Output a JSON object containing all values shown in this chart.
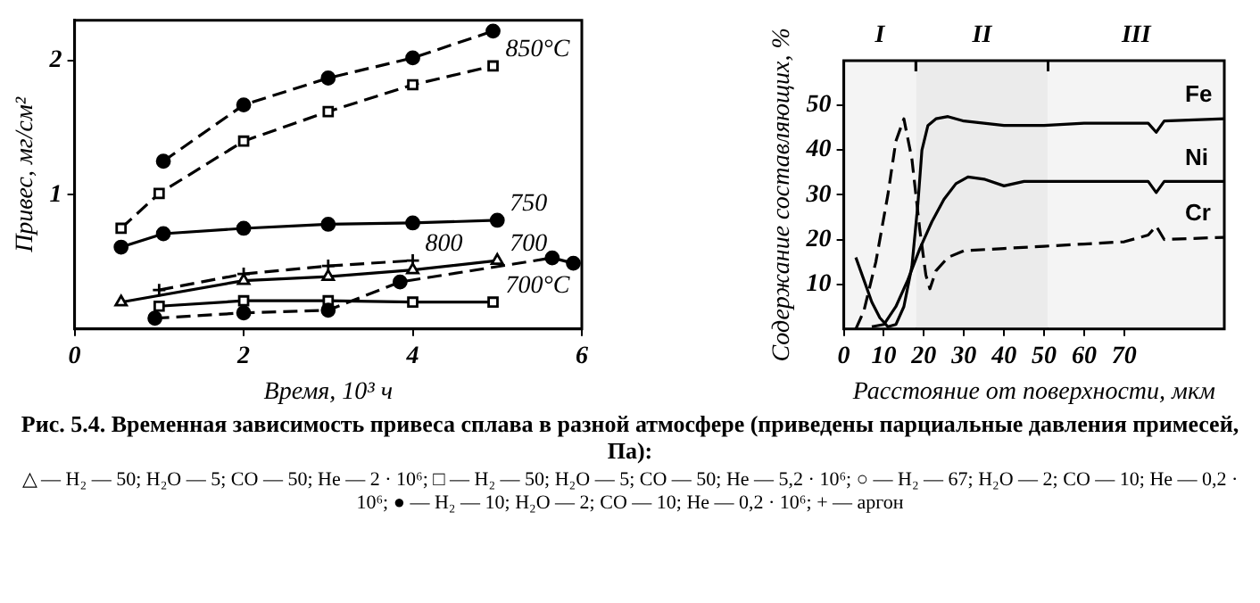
{
  "chart_data": [
    {
      "type": "line",
      "xlabel": "Время, 10³ ч",
      "ylabel": "Привес, мг/см²",
      "xlim": [
        0,
        6
      ],
      "xticks": [
        0,
        2,
        4,
        6
      ],
      "ylim": [
        0,
        2.3
      ],
      "yticks": [
        1,
        2
      ],
      "grid": false,
      "legend": false,
      "series": [
        {
          "color": "#000000",
          "marker": "circle",
          "line_style": "dashed",
          "x": [
            1.05,
            2,
            3,
            4,
            4.95
          ],
          "values": [
            1.25,
            1.67,
            1.87,
            2.02,
            2.22
          ]
        },
        {
          "name": "850°C",
          "color": "#000000",
          "marker": "square",
          "line_style": "dashed",
          "x": [
            0.55,
            1,
            2,
            3,
            4,
            4.95
          ],
          "values": [
            0.75,
            1.01,
            1.4,
            1.62,
            1.82,
            1.96
          ]
        },
        {
          "name": "750",
          "color": "#000000",
          "marker": "circle",
          "line_style": "solid",
          "x": [
            0.55,
            1.05,
            2,
            3,
            4,
            5
          ],
          "values": [
            0.61,
            0.71,
            0.75,
            0.78,
            0.79,
            0.81
          ]
        },
        {
          "name": "700",
          "color": "#000000",
          "marker": "triangle",
          "line_style": "solid",
          "x": [
            0.55,
            2,
            3,
            4,
            5
          ],
          "values": [
            0.2,
            0.36,
            0.39,
            0.44,
            0.51
          ]
        },
        {
          "name": "800",
          "color": "#000000",
          "marker": "cross",
          "line_style": "dashed",
          "x": [
            1,
            2,
            3,
            4
          ],
          "values": [
            0.29,
            0.41,
            0.47,
            0.51
          ]
        },
        {
          "color": "#000000",
          "marker": "circle",
          "line_style": "dashed",
          "x": [
            0.95,
            2,
            3,
            3.85,
            5.65,
            5.9
          ],
          "values": [
            0.08,
            0.12,
            0.14,
            0.35,
            0.53,
            0.49
          ]
        },
        {
          "name": "700°C",
          "color": "#000000",
          "marker": "square",
          "line_style": "solid",
          "x": [
            1,
            2,
            3,
            4,
            4.95
          ],
          "values": [
            0.17,
            0.21,
            0.21,
            0.2,
            0.2
          ]
        }
      ],
      "annotations": [
        "Рис. 5.4. Временная зависимость привеса сплава в разной атмосфере (приведены парциальные давления примесей, Па):",
        "△ — H₂ — 50; H₂O — 5; CO — 50; He — 2 · 10⁶; □ — H₂ — 50; H₂O — 5; CO — 50; He — 5,2 · 10⁶; ○ — H₂ — 67; H₂O — 2; CO — 10; He — 0,2 · 10⁶; ● — H₂ — 10; H₂O — 2; CO — 10; He — 0,2 · 10⁶; + — аргон"
      ]
    },
    {
      "type": "line",
      "xlabel": "Расстояние от поверхности, мкм",
      "ylabel": "Содержание составляющих, %",
      "xlim": [
        0,
        95
      ],
      "xticks": [
        0,
        10,
        20,
        30,
        40,
        50,
        60,
        70
      ],
      "ylim": [
        0,
        60
      ],
      "yticks": [
        10,
        20,
        30,
        40,
        50
      ],
      "grid": false,
      "legend": false,
      "marker": "none",
      "bands": [
        {
          "axis": "x",
          "from": 0,
          "to": 18,
          "label": "I",
          "color": "#f4f4f4"
        },
        {
          "axis": "x",
          "from": 18,
          "to": 51,
          "label": "II",
          "color": "#ebebeb"
        },
        {
          "axis": "x",
          "from": 51,
          "to": 95,
          "label": "III",
          "color": "#f4f4f4"
        }
      ],
      "series": [
        {
          "name": "Fe",
          "color": "#000000",
          "line_style": "solid",
          "x": [
            3,
            5,
            7,
            9,
            11,
            13,
            15,
            17,
            18.5,
            19.5,
            21,
            23,
            26,
            30,
            40,
            50,
            60,
            70,
            76,
            78,
            80,
            95
          ],
          "values": [
            16,
            11,
            6,
            2.5,
            0.5,
            1,
            5,
            14,
            28,
            40,
            45.5,
            47,
            47.5,
            46.5,
            45.5,
            45.5,
            46,
            46,
            46,
            44,
            46.5,
            47
          ]
        },
        {
          "name": "Ni",
          "color": "#000000",
          "line_style": "solid",
          "x": [
            7,
            10,
            13,
            16,
            19,
            22,
            25,
            28,
            31,
            35,
            40,
            45,
            50,
            60,
            70,
            76,
            78,
            80,
            95
          ],
          "values": [
            0.5,
            1,
            5,
            11,
            18,
            24,
            29,
            32.5,
            34,
            33.5,
            32,
            33,
            33,
            33,
            33,
            33,
            30.5,
            33,
            33
          ]
        },
        {
          "name": "Cr",
          "color": "#000000",
          "line_style": "dashed",
          "x": [
            3,
            5,
            8,
            11,
            13,
            15,
            17,
            19,
            20.5,
            21.5,
            23,
            26,
            30,
            40,
            50,
            60,
            70,
            76,
            78,
            80,
            95
          ],
          "values": [
            0,
            4,
            15,
            30,
            42,
            47,
            38,
            22,
            12,
            9,
            13,
            16,
            17.5,
            18,
            18.5,
            19,
            19.5,
            21,
            23,
            20,
            20.5
          ]
        }
      ]
    }
  ]
}
